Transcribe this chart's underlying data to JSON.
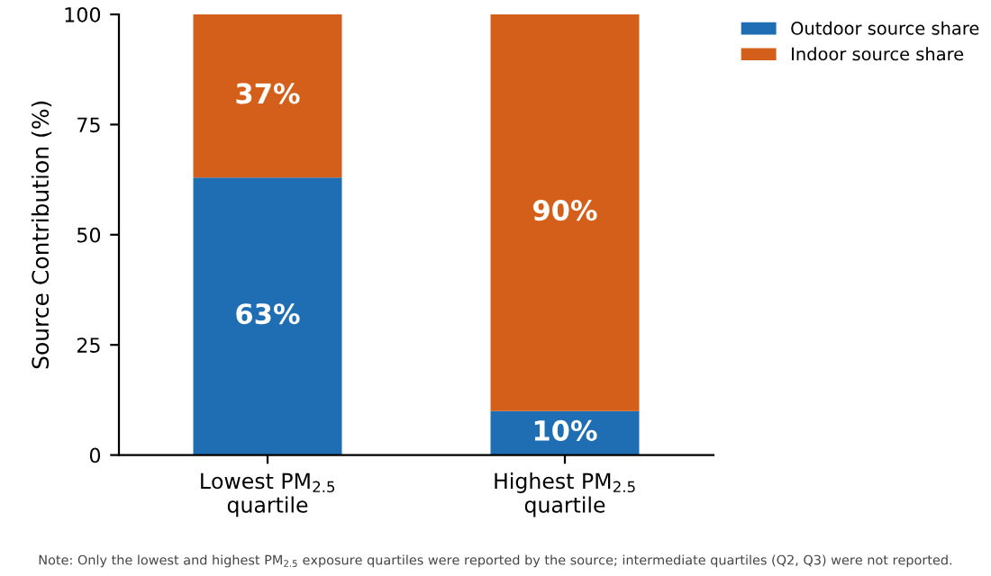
{
  "chart_data": {
    "type": "bar",
    "stacked": true,
    "ylabel": "Source Contribution (%)",
    "categories": [
      "Lowest PM$_{2.5}$\nquartile",
      "Highest PM$_{2.5}$\nquartile"
    ],
    "series": [
      {
        "name": "Outdoor source share",
        "color": "#1f6eb4",
        "values": [
          63,
          10
        ],
        "value_labels": [
          "63%",
          "10%"
        ]
      },
      {
        "name": "Indoor source share",
        "color": "#d45f1a",
        "values": [
          37,
          90
        ],
        "value_labels": [
          "37%",
          "90%"
        ]
      }
    ],
    "ylim": [
      0,
      100
    ],
    "yticks": [
      0,
      25,
      50,
      75,
      100
    ],
    "grid": false,
    "legend": "top right",
    "annotations": [
      "Note: Only the lowest and highest PM$_{2.5}$ exposure quartiles were reported by the source; intermediate quartiles (Q2, Q3) were not reported."
    ]
  }
}
